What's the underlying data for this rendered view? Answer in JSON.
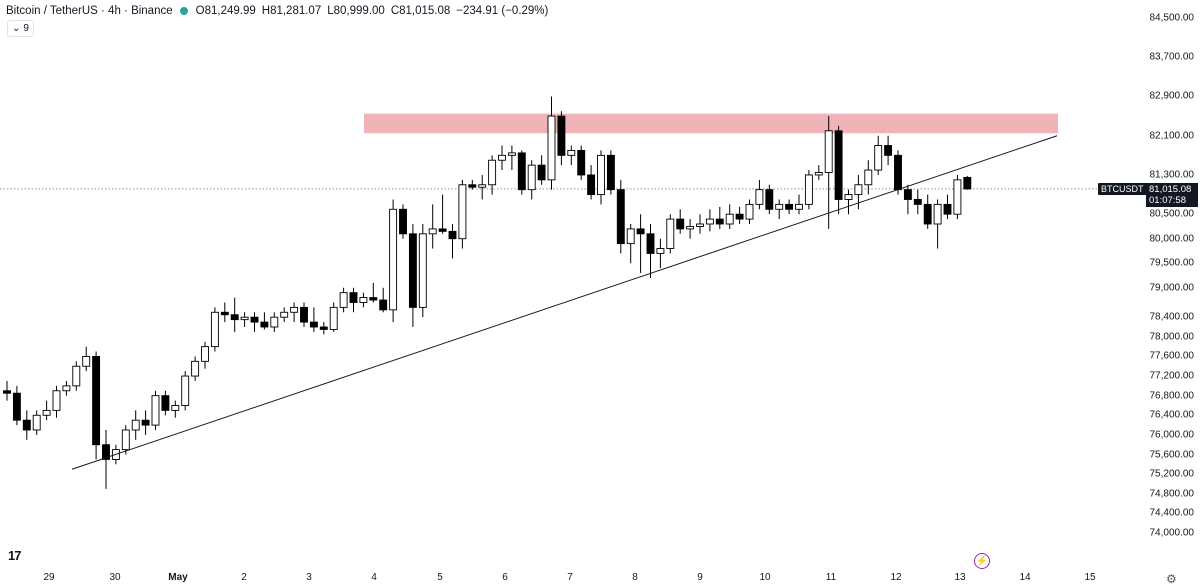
{
  "header": {
    "title": "Bitcoin / TetherUS · 4h · Binance",
    "open_key": "O",
    "open": "81,249.99",
    "high_key": "H",
    "high": "81,281.07",
    "low_key": "L",
    "low": "80,999.00",
    "close_key": "C",
    "close": "81,015.08",
    "change": "−234.91 (−0.29%)",
    "status_color": "#26a69a"
  },
  "indicators": {
    "count": "9",
    "icon": "chevron-down-icon"
  },
  "price_axis": {
    "ticks": [
      "84,500.00",
      "83,700.00",
      "82,900.00",
      "82,100.00",
      "81,300.00",
      "80,500.00",
      "80,000.00",
      "79,500.00",
      "79,000.00",
      "78,400.00",
      "78,000.00",
      "77,600.00",
      "77,200.00",
      "76,800.00",
      "76,400.00",
      "76,000.00",
      "75,600.00",
      "75,200.00",
      "74,800.00",
      "74,400.00",
      "74,000.00"
    ],
    "last_price": "81,015.08",
    "countdown": "01:07:58",
    "symbol": "BTCUSDT"
  },
  "time_axis": {
    "labels": [
      {
        "text": "29",
        "bold": false
      },
      {
        "text": "30",
        "bold": false
      },
      {
        "text": "May",
        "bold": true
      },
      {
        "text": "2",
        "bold": false
      },
      {
        "text": "3",
        "bold": false
      },
      {
        "text": "4",
        "bold": false
      },
      {
        "text": "5",
        "bold": false
      },
      {
        "text": "6",
        "bold": false
      },
      {
        "text": "7",
        "bold": false
      },
      {
        "text": "8",
        "bold": false
      },
      {
        "text": "9",
        "bold": false
      },
      {
        "text": "10",
        "bold": false
      },
      {
        "text": "11",
        "bold": false
      },
      {
        "text": "12",
        "bold": false
      },
      {
        "text": "13",
        "bold": false
      },
      {
        "text": "14",
        "bold": false
      },
      {
        "text": "15",
        "bold": false
      }
    ]
  },
  "logo": "17",
  "colors": {
    "resistance_zone": "#f0b3b8",
    "up_candle": "#ffffff",
    "down_candle": "#000000",
    "trendline": "#131722"
  },
  "chart_data": {
    "type": "candlestick",
    "symbol": "Bitcoin / TetherUS",
    "interval": "4h",
    "exchange": "Binance",
    "candles": [
      [
        76900,
        77100,
        76700,
        76850
      ],
      [
        76850,
        77000,
        76200,
        76300
      ],
      [
        76300,
        76500,
        75900,
        76100
      ],
      [
        76100,
        76500,
        76000,
        76400
      ],
      [
        76400,
        76700,
        76300,
        76500
      ],
      [
        76500,
        77000,
        76350,
        76900
      ],
      [
        76900,
        77100,
        76800,
        77000
      ],
      [
        77000,
        77500,
        76900,
        77400
      ],
      [
        77400,
        77800,
        77300,
        77600
      ],
      [
        77600,
        77700,
        75500,
        75800
      ],
      [
        75800,
        76100,
        74900,
        75500
      ],
      [
        75500,
        75800,
        75400,
        75700
      ],
      [
        75700,
        76200,
        75600,
        76100
      ],
      [
        76100,
        76500,
        75900,
        76300
      ],
      [
        76300,
        76500,
        76000,
        76200
      ],
      [
        76200,
        76900,
        76100,
        76800
      ],
      [
        76800,
        76900,
        76400,
        76500
      ],
      [
        76500,
        76700,
        76350,
        76600
      ],
      [
        76600,
        77300,
        76500,
        77200
      ],
      [
        77200,
        77600,
        77100,
        77500
      ],
      [
        77500,
        77900,
        77350,
        77800
      ],
      [
        77800,
        78600,
        77700,
        78500
      ],
      [
        78500,
        78700,
        78300,
        78450
      ],
      [
        78450,
        78800,
        78100,
        78350
      ],
      [
        78350,
        78500,
        78200,
        78400
      ],
      [
        78400,
        78500,
        78100,
        78300
      ],
      [
        78300,
        78500,
        78150,
        78200
      ],
      [
        78200,
        78500,
        78100,
        78400
      ],
      [
        78400,
        78600,
        78300,
        78500
      ],
      [
        78500,
        78700,
        78300,
        78600
      ],
      [
        78600,
        78700,
        78200,
        78300
      ],
      [
        78300,
        78600,
        78100,
        78200
      ],
      [
        78200,
        78300,
        78050,
        78150
      ],
      [
        78150,
        78700,
        78100,
        78600
      ],
      [
        78600,
        79000,
        78500,
        78900
      ],
      [
        78900,
        79000,
        78500,
        78700
      ],
      [
        78700,
        78900,
        78600,
        78800
      ],
      [
        78800,
        79100,
        78700,
        78750
      ],
      [
        78750,
        79000,
        78500,
        78550
      ],
      [
        78550,
        80800,
        78300,
        80600
      ],
      [
        80600,
        80700,
        80000,
        80100
      ],
      [
        80100,
        80300,
        78200,
        78600
      ],
      [
        78600,
        80300,
        78400,
        80100
      ],
      [
        80100,
        80700,
        79800,
        80200
      ],
      [
        80200,
        80900,
        80100,
        80150
      ],
      [
        80150,
        80300,
        79600,
        80000
      ],
      [
        80000,
        81200,
        79800,
        81100
      ],
      [
        81100,
        81200,
        81000,
        81050
      ],
      [
        81050,
        81300,
        80800,
        81100
      ],
      [
        81100,
        81700,
        80900,
        81600
      ],
      [
        81600,
        81900,
        81400,
        81700
      ],
      [
        81700,
        81900,
        81400,
        81750
      ],
      [
        81750,
        81800,
        80900,
        81000
      ],
      [
        81000,
        81600,
        80800,
        81500
      ],
      [
        81500,
        81700,
        81100,
        81200
      ],
      [
        81200,
        82900,
        81000,
        82500
      ],
      [
        82500,
        82600,
        81500,
        81700
      ],
      [
        81700,
        81900,
        81500,
        81800
      ],
      [
        81800,
        81900,
        81200,
        81300
      ],
      [
        81300,
        81500,
        80800,
        80900
      ],
      [
        80900,
        81800,
        80700,
        81700
      ],
      [
        81700,
        81800,
        80900,
        81000
      ],
      [
        81000,
        81200,
        79700,
        79900
      ],
      [
        79900,
        80300,
        79500,
        80200
      ],
      [
        80200,
        80500,
        79300,
        80100
      ],
      [
        80100,
        80300,
        79200,
        79700
      ],
      [
        79700,
        80000,
        79400,
        79800
      ],
      [
        79800,
        80500,
        79700,
        80400
      ],
      [
        80400,
        80600,
        80100,
        80200
      ],
      [
        80200,
        80400,
        80000,
        80250
      ],
      [
        80250,
        80500,
        80100,
        80300
      ],
      [
        80300,
        80600,
        80150,
        80400
      ],
      [
        80400,
        80650,
        80200,
        80300
      ],
      [
        80300,
        80700,
        80200,
        80500
      ],
      [
        80500,
        80650,
        80300,
        80400
      ],
      [
        80400,
        80800,
        80300,
        80700
      ],
      [
        80700,
        81200,
        80600,
        81000
      ],
      [
        81000,
        81100,
        80500,
        80600
      ],
      [
        80600,
        80800,
        80400,
        80700
      ],
      [
        80700,
        80800,
        80500,
        80600
      ],
      [
        80600,
        80900,
        80500,
        80700
      ],
      [
        80700,
        81400,
        80600,
        81300
      ],
      [
        81300,
        81500,
        81200,
        81350
      ],
      [
        81350,
        82500,
        80200,
        82200
      ],
      [
        82200,
        82300,
        80500,
        80800
      ],
      [
        80800,
        81000,
        80500,
        80900
      ],
      [
        80900,
        81300,
        80600,
        81100
      ],
      [
        81100,
        81600,
        80900,
        81400
      ],
      [
        81400,
        82100,
        81300,
        81900
      ],
      [
        81900,
        82100,
        81500,
        81700
      ],
      [
        81700,
        81800,
        80900,
        81000
      ],
      [
        81000,
        81100,
        80500,
        80800
      ],
      [
        80800,
        81000,
        80500,
        80700
      ],
      [
        80700,
        80900,
        80200,
        80300
      ],
      [
        80300,
        80800,
        79800,
        80700
      ],
      [
        80700,
        80900,
        80400,
        80500
      ],
      [
        80500,
        81300,
        80400,
        81200
      ],
      [
        81249.99,
        81281.07,
        80999.0,
        81015.08
      ]
    ],
    "resistance_zone": [
      82150,
      82550
    ],
    "trendline": [
      [
        0,
        75300
      ],
      [
        99,
        82100
      ]
    ],
    "last_price": 81015.08,
    "ylim": [
      73900,
      84800
    ]
  }
}
